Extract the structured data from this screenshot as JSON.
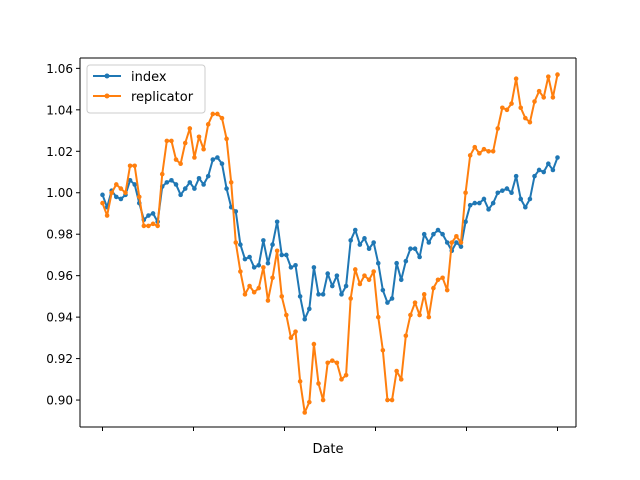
{
  "chart_data": {
    "type": "line",
    "xlabel": "Date",
    "ylabel": "",
    "ylim": [
      0.887,
      1.065
    ],
    "y_ticks": [
      "0.90",
      "0.92",
      "0.94",
      "0.96",
      "0.98",
      "1.00",
      "1.02",
      "1.04",
      "1.06"
    ],
    "x_tick_count": 6,
    "grid": false,
    "legend": "top-left",
    "series": [
      {
        "name": "index",
        "color": "#1f77b4",
        "values": [
          0.999,
          0.993,
          1.001,
          0.998,
          0.997,
          0.999,
          1.006,
          1.004,
          0.995,
          0.987,
          0.989,
          0.99,
          0.986,
          1.003,
          1.005,
          1.006,
          1.004,
          0.999,
          1.002,
          1.005,
          1.002,
          1.007,
          1.004,
          1.008,
          1.016,
          1.017,
          1.014,
          1.002,
          0.993,
          0.991,
          0.975,
          0.968,
          0.969,
          0.964,
          0.965,
          0.977,
          0.966,
          0.975,
          0.986,
          0.97,
          0.97,
          0.964,
          0.965,
          0.95,
          0.939,
          0.944,
          0.964,
          0.951,
          0.951,
          0.961,
          0.955,
          0.96,
          0.951,
          0.955,
          0.977,
          0.982,
          0.975,
          0.978,
          0.973,
          0.976,
          0.966,
          0.953,
          0.947,
          0.949,
          0.966,
          0.958,
          0.967,
          0.973,
          0.973,
          0.969,
          0.98,
          0.976,
          0.98,
          0.982,
          0.98,
          0.976,
          0.972,
          0.976,
          0.974,
          0.986,
          0.994,
          0.995,
          0.995,
          0.997,
          0.992,
          0.995,
          1.0,
          1.001,
          1.002,
          1.0,
          1.008,
          0.997,
          0.993,
          0.997,
          1.008,
          1.011,
          1.01,
          1.014,
          1.011,
          1.017
        ]
      },
      {
        "name": "replicator",
        "color": "#ff7f0e",
        "values": [
          0.995,
          0.989,
          1.0,
          1.004,
          1.002,
          1.0,
          1.013,
          1.013,
          0.998,
          0.984,
          0.984,
          0.985,
          0.984,
          1.009,
          1.025,
          1.025,
          1.016,
          1.014,
          1.024,
          1.031,
          1.017,
          1.027,
          1.021,
          1.033,
          1.038,
          1.038,
          1.036,
          1.026,
          1.005,
          0.976,
          0.962,
          0.951,
          0.955,
          0.952,
          0.954,
          0.964,
          0.948,
          0.959,
          0.972,
          0.95,
          0.941,
          0.93,
          0.933,
          0.909,
          0.894,
          0.899,
          0.927,
          0.908,
          0.9,
          0.918,
          0.919,
          0.918,
          0.91,
          0.912,
          0.949,
          0.963,
          0.956,
          0.96,
          0.958,
          0.962,
          0.94,
          0.924,
          0.9,
          0.9,
          0.914,
          0.91,
          0.931,
          0.941,
          0.947,
          0.941,
          0.951,
          0.94,
          0.954,
          0.958,
          0.959,
          0.953,
          0.976,
          0.979,
          0.976,
          1.0,
          1.018,
          1.022,
          1.019,
          1.021,
          1.02,
          1.02,
          1.031,
          1.041,
          1.04,
          1.043,
          1.055,
          1.041,
          1.036,
          1.034,
          1.044,
          1.049,
          1.046,
          1.056,
          1.046,
          1.057
        ]
      }
    ]
  }
}
